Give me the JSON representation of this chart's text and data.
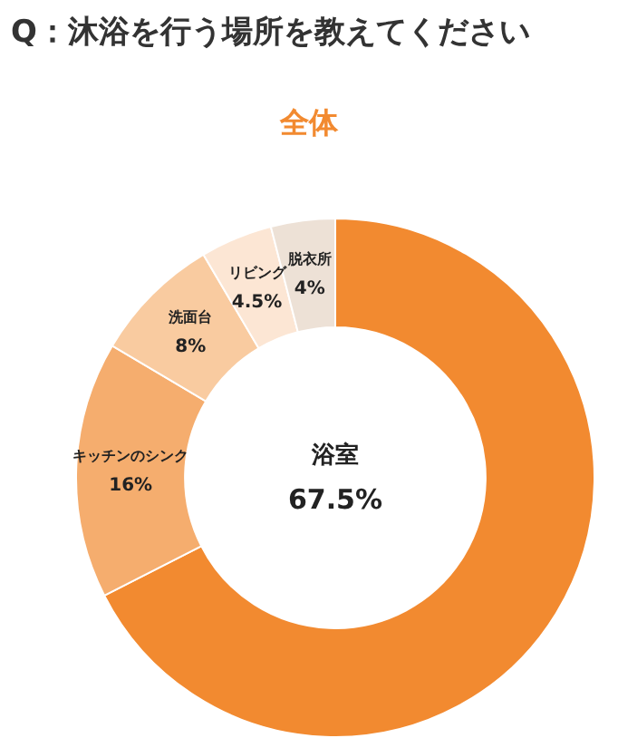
{
  "chart_data": {
    "type": "donut",
    "title": "Q：沐浴を行う場所を教えてください",
    "subtitle": "全体",
    "categories": [
      "浴室",
      "キッチンのシンク",
      "洗面台",
      "リビング",
      "脱衣所"
    ],
    "values": [
      67.5,
      16,
      8,
      4.5,
      4
    ],
    "colors": [
      "#f28a30",
      "#f5ad6e",
      "#f9cba0",
      "#fce6d4",
      "#ede1d6"
    ],
    "value_labels": [
      "67.5%",
      "16%",
      "8%",
      "4.5%",
      "4%"
    ],
    "legend": false
  }
}
